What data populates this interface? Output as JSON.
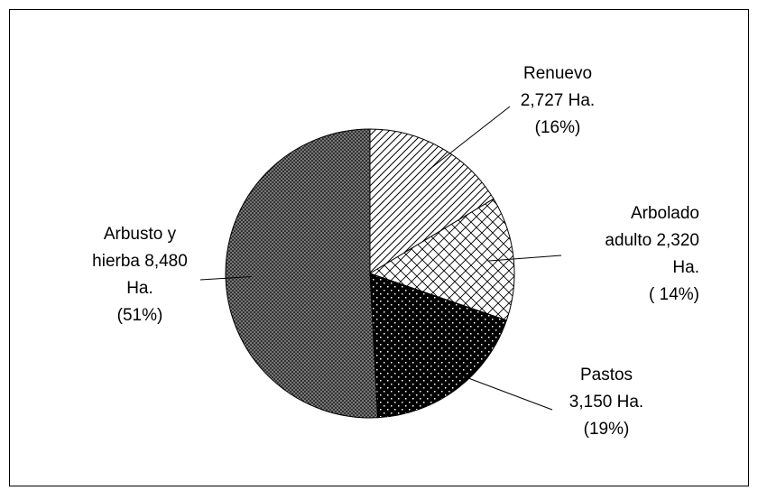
{
  "chart_data": {
    "type": "pie",
    "categories": [
      "Renuevo",
      "Arbolado adulto",
      "Pastos",
      "Arbusto y hierba"
    ],
    "values": [
      2727,
      2320,
      3150,
      8480
    ],
    "label_lines": [
      [
        "Renuevo",
        "2,727 Ha.",
        "(16%)"
      ],
      [
        "Arbolado",
        "adulto 2,320",
        "Ha.",
        "( 14%)"
      ],
      [
        "Pastos",
        "3,150 Ha.",
        "(19%)"
      ],
      [
        "Arbusto y",
        "hierba 8,480",
        "Ha.",
        "(51%)"
      ]
    ],
    "patterns": [
      "diagonal-lines",
      "large-crosshatch",
      "dots-on-black",
      "fine-crosshatch"
    ]
  }
}
